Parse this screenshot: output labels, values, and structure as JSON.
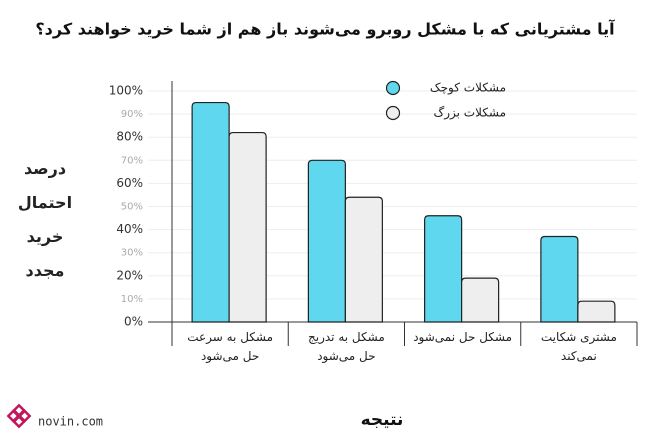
{
  "chart_data": {
    "type": "bar",
    "title": "آیا مشتریانی که با مشکل روبرو می‌شوند باز هم از شما خرید خواهند کرد؟",
    "y_label": "درصد\nاحتمال\nخرید مجدد",
    "x_label": "نتیجه",
    "categories": [
      "مشکل به سرعت\nحل می‌شود",
      "مشکل به تدریج\nحل می‌شود",
      "مشکل حل نمی‌شود",
      "مشتری شکایت\nنمی‌کند"
    ],
    "series": [
      {
        "name": "مشکلات کوچک",
        "color": "#5fd8ef",
        "values": [
          95,
          70,
          46,
          37
        ]
      },
      {
        "name": "مشکلات بزرگ",
        "color": "#eeeeee",
        "values": [
          82,
          54,
          19,
          9
        ]
      }
    ],
    "ylim": [
      0,
      100
    ],
    "yticks": [
      {
        "value": 0,
        "label": "0%"
      },
      {
        "value": 10,
        "label": "10%"
      },
      {
        "value": 20,
        "label": "20%"
      },
      {
        "value": 30,
        "label": "30%"
      },
      {
        "value": 40,
        "label": "40%"
      },
      {
        "value": 50,
        "label": "50%"
      },
      {
        "value": 60,
        "label": "60%"
      },
      {
        "value": 70,
        "label": "70%"
      },
      {
        "value": 80,
        "label": "80%"
      },
      {
        "value": 90,
        "label": "90%"
      },
      {
        "value": 100,
        "label": "100%"
      }
    ],
    "grid": true,
    "legend": "top-right",
    "logo": "novin.com"
  }
}
